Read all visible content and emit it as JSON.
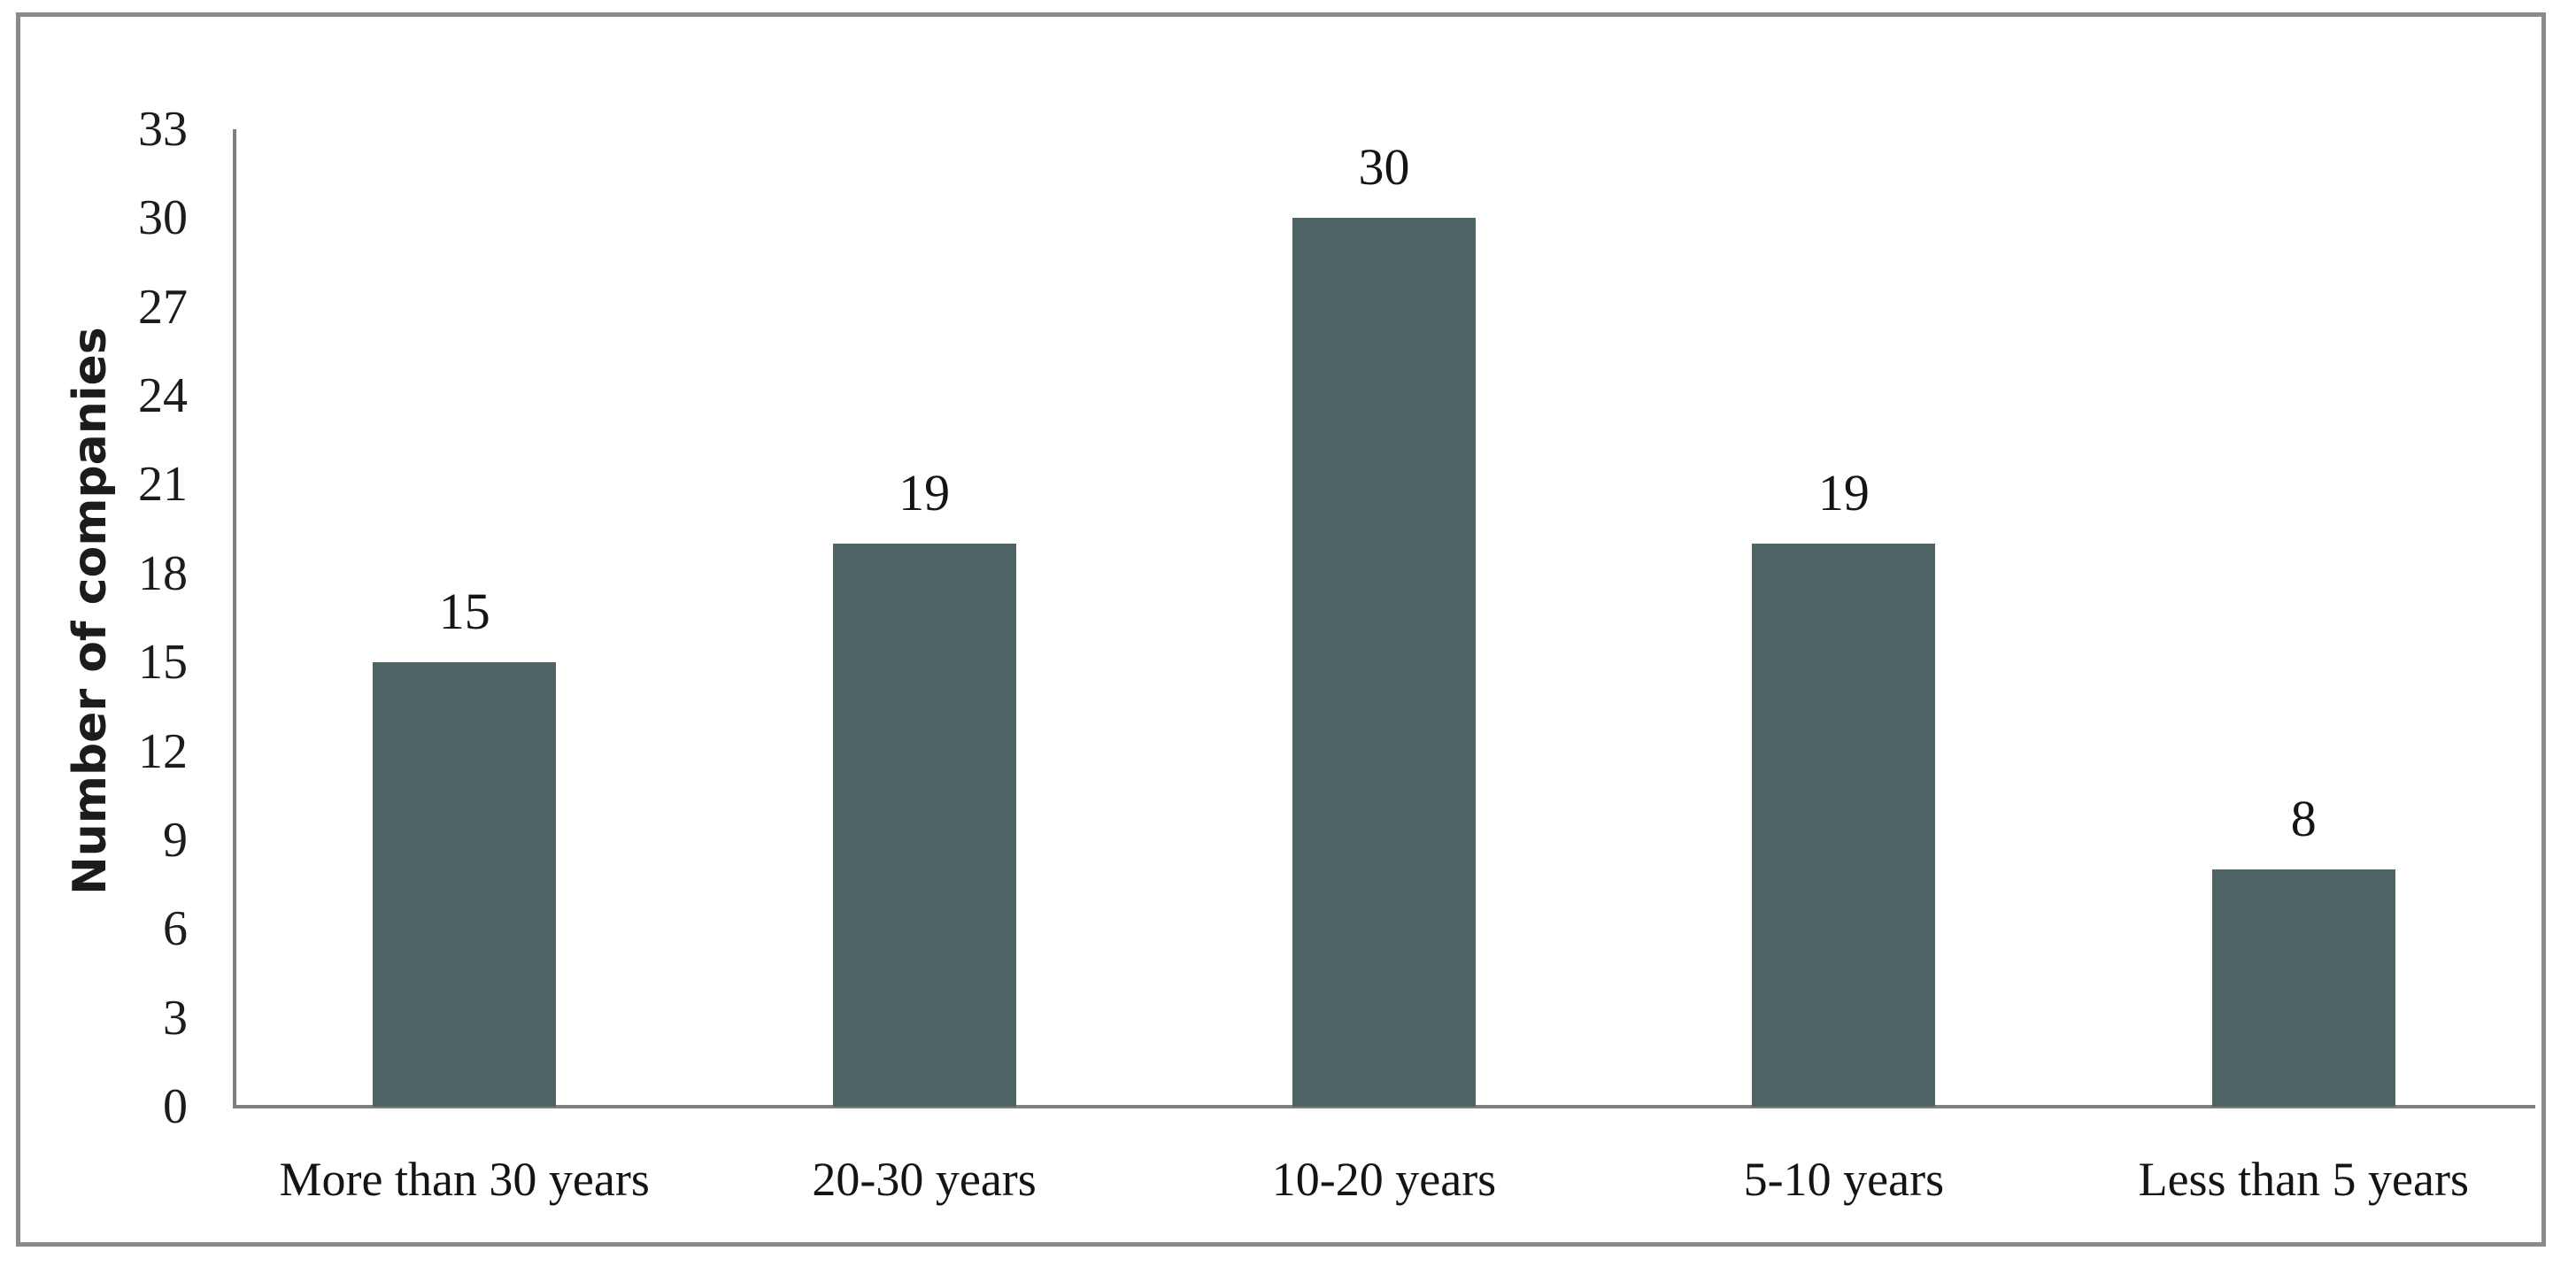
{
  "figure": {
    "description": "Bar chart of number of companies by company age group"
  },
  "chart_data": {
    "type": "bar",
    "categories": [
      "More than 30 years",
      "20-30 years",
      "10-20 years",
      "5-10 years",
      "Less than 5 years"
    ],
    "values": [
      15,
      19,
      30,
      19,
      8
    ],
    "data_labels": [
      "15",
      "19",
      "30",
      "19",
      "8"
    ],
    "title": "",
    "xlabel": "",
    "ylabel": "Number of companies",
    "yticks": [
      0,
      3,
      6,
      9,
      12,
      15,
      18,
      21,
      24,
      27,
      30,
      33
    ],
    "ylim": [
      0,
      33
    ],
    "grid": false,
    "legend": "none",
    "colors": {
      "bar_fill": "#4e6464",
      "axis_line": "#7f7f7f",
      "frame_border": "#8a8a8a",
      "text": "#1c1c1c",
      "background": "#ffffff"
    }
  }
}
